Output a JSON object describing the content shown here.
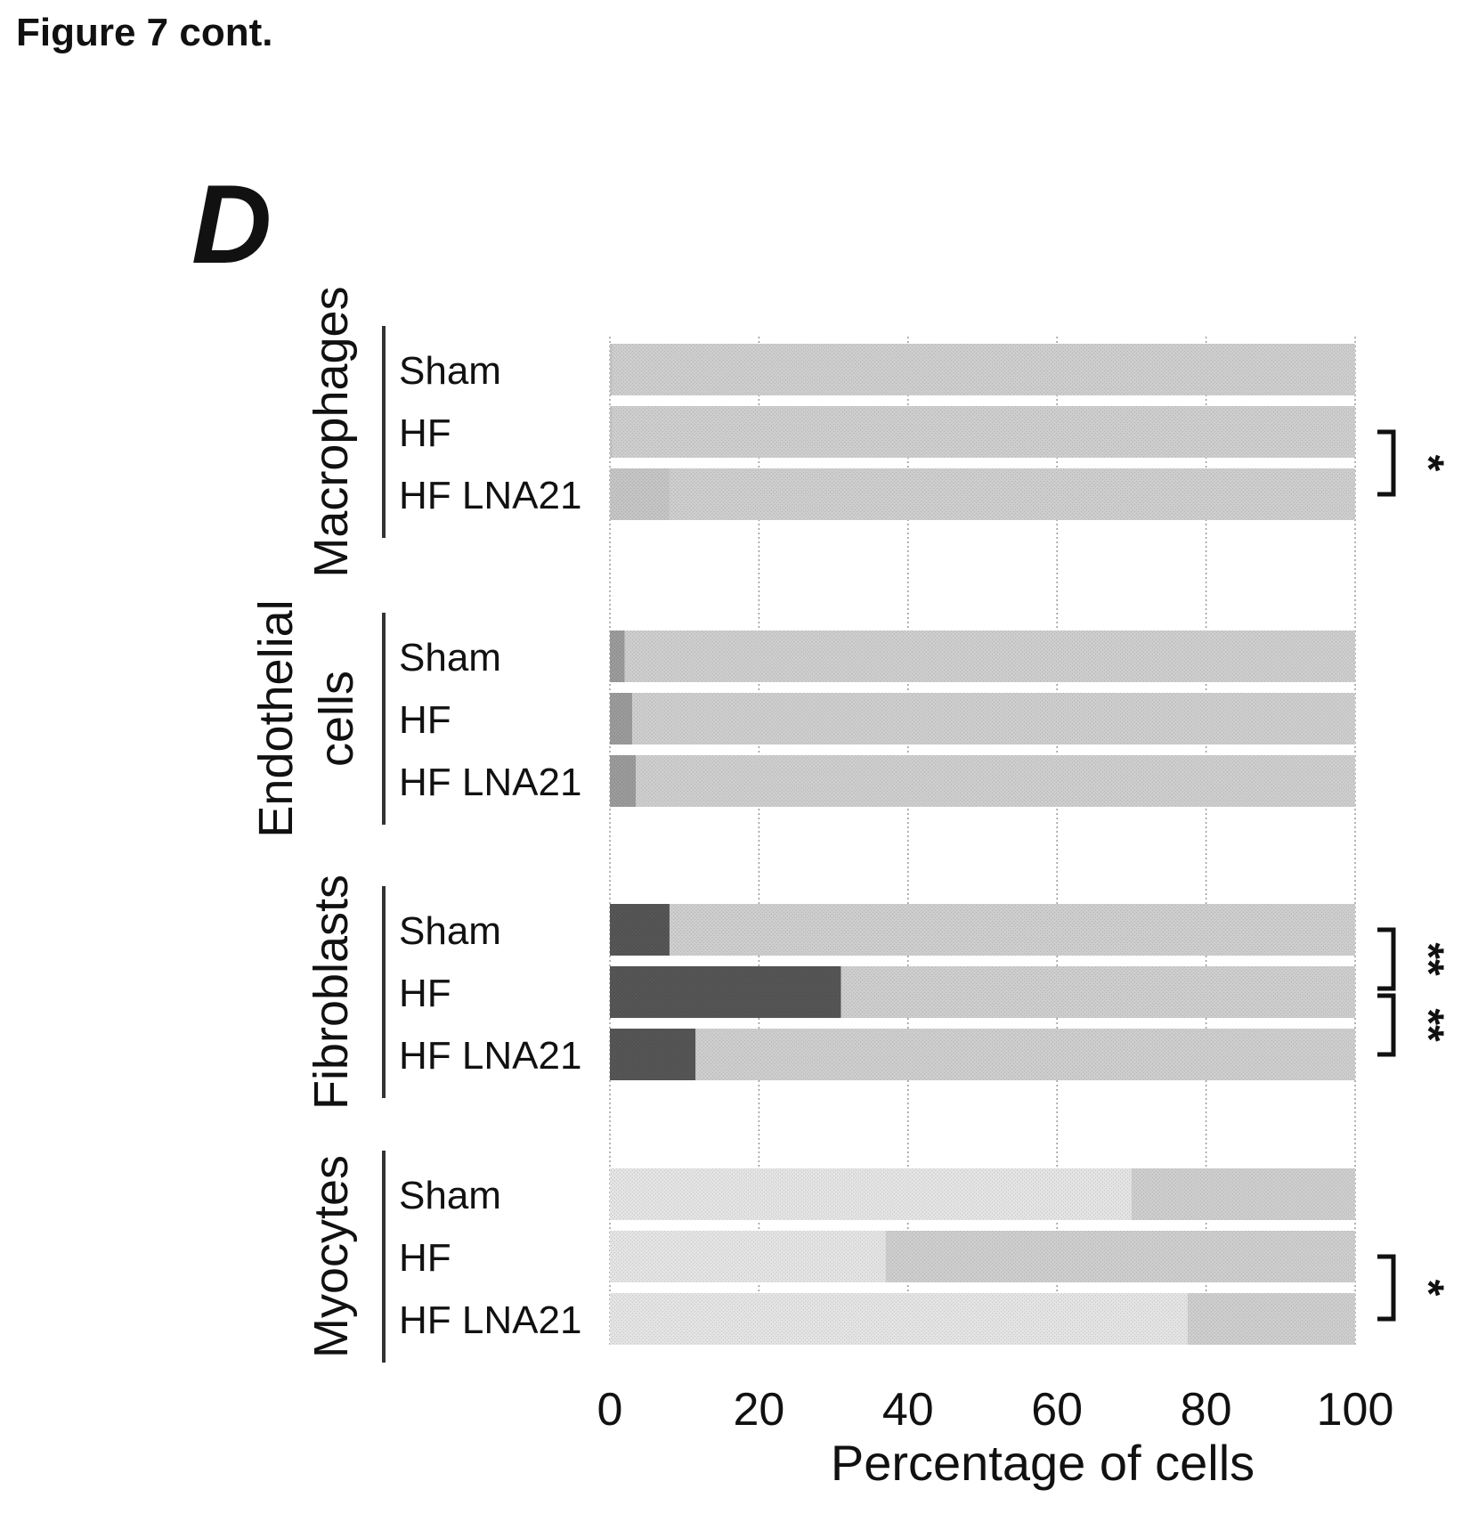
{
  "header": {
    "title": "Figure 7 cont."
  },
  "chart_data": {
    "type": "bar",
    "stacked": true,
    "orientation": "horizontal",
    "panel_label": "D",
    "xlabel": "Percentage of cells",
    "ylabel": "",
    "xlim": [
      0,
      100
    ],
    "xticks": [
      0,
      20,
      40,
      60,
      80,
      100
    ],
    "x_tick_labels": [
      "0",
      "20",
      "40",
      "60",
      "80",
      "100"
    ],
    "grid": "vertical dotted",
    "legend": "none",
    "groups": [
      {
        "name": "Macrophages",
        "name_lines": [
          "Macrophages"
        ],
        "bars": [
          {
            "label": "Sham",
            "segments": [
              0.3,
              99.7
            ]
          },
          {
            "label": "HF",
            "segments": [
              0.3,
              99.7
            ]
          },
          {
            "label": "HF LNA21",
            "segments": [
              8,
              92
            ]
          }
        ],
        "significance": [
          {
            "between": [
              "HF",
              "HF LNA21"
            ],
            "mark": "*"
          }
        ]
      },
      {
        "name": "Endothelial cells",
        "name_lines": [
          "Endothelial",
          "cells"
        ],
        "bars": [
          {
            "label": "Sham",
            "segments": [
              2,
              98
            ]
          },
          {
            "label": "HF",
            "segments": [
              3,
              97
            ]
          },
          {
            "label": "HF LNA21",
            "segments": [
              3.5,
              96.5
            ]
          }
        ],
        "significance": []
      },
      {
        "name": "Fibroblasts",
        "name_lines": [
          "Fibroblasts"
        ],
        "bars": [
          {
            "label": "Sham",
            "segments": [
              8,
              92
            ]
          },
          {
            "label": "HF",
            "segments": [
              31,
              69
            ]
          },
          {
            "label": "HF LNA21",
            "segments": [
              11.5,
              88.5
            ]
          }
        ],
        "significance": [
          {
            "between": [
              "Sham",
              "HF"
            ],
            "mark": "**"
          },
          {
            "between": [
              "HF",
              "HF LNA21"
            ],
            "mark": "**"
          }
        ]
      },
      {
        "name": "Myocytes",
        "name_lines": [
          "Myocytes"
        ],
        "bars": [
          {
            "label": "Sham",
            "segments": [
              70,
              30
            ]
          },
          {
            "label": "HF",
            "segments": [
              37,
              63
            ]
          },
          {
            "label": "HF LNA21",
            "segments": [
              77.5,
              22.5
            ]
          }
        ],
        "significance": [
          {
            "between": [
              "HF",
              "HF LNA21"
            ],
            "mark": "*"
          }
        ]
      }
    ],
    "colors": {
      "background_segment": "#cdcdcd",
      "fibroblast_segment": "#555555",
      "myocyte_segment": "#e3e3e3",
      "endothelial_segment": "#9a9a9a",
      "macrophage_segment": "#c4c4c4"
    }
  }
}
